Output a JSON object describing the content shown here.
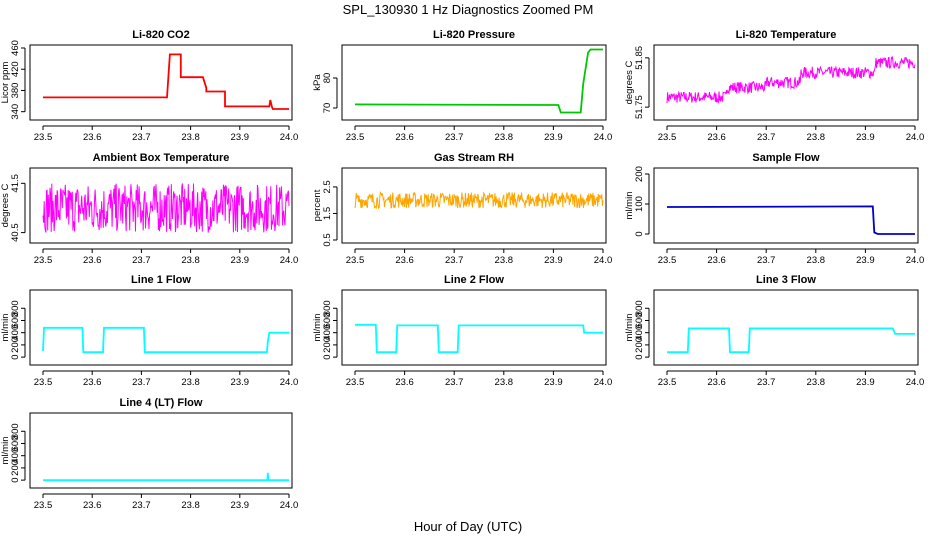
{
  "title": "SPL_130930  1 Hz Diagnostics Zoomed PM",
  "xlabel": "Hour of Day (UTC)",
  "chart_data": [
    {
      "type": "line",
      "title": "Li-820 CO2",
      "ylabel": "Licor ppm",
      "color": "#ff0000",
      "ylim": [
        330,
        460
      ],
      "yticks": [
        340,
        380,
        420,
        460
      ],
      "xlim": [
        23.5,
        24.0
      ],
      "xticks": [
        "23.5",
        "23.6",
        "23.7",
        "23.8",
        "23.9",
        "24.0"
      ],
      "x": [
        23.5,
        23.752,
        23.752,
        23.758,
        23.775,
        23.78,
        23.78,
        23.825,
        23.832,
        23.832,
        23.86,
        23.87,
        23.87,
        23.96,
        23.962,
        23.965,
        23.967,
        24.0
      ],
      "y": [
        367,
        367,
        367,
        448,
        448,
        448,
        405,
        405,
        385,
        378,
        378,
        378,
        350,
        350,
        362,
        350,
        345,
        345
      ]
    },
    {
      "type": "line",
      "title": "Li-820 Pressure",
      "ylabel": "kPa",
      "color": "#00c800",
      "ylim": [
        67,
        90
      ],
      "yticks": [
        70,
        80
      ],
      "xlim": [
        23.5,
        24.0
      ],
      "xticks": [
        "23.5",
        "23.6",
        "23.7",
        "23.8",
        "23.9",
        "24.0"
      ],
      "x": [
        23.5,
        23.91,
        23.915,
        23.955,
        23.96,
        23.97,
        23.975,
        24.0
      ],
      "y": [
        71.2,
        71.0,
        68.5,
        68.5,
        78,
        88.5,
        89.5,
        89.5
      ]
    },
    {
      "type": "line",
      "title": "Li-820 Temperature",
      "ylabel": "degrees C",
      "color": "#ff00ff",
      "ylim": [
        51.73,
        51.87
      ],
      "yticks": [
        51.75,
        51.85
      ],
      "xlim": [
        23.5,
        24.0
      ],
      "xticks": [
        "23.5",
        "23.6",
        "23.7",
        "23.8",
        "23.9",
        "24.0"
      ],
      "x": [
        23.5,
        23.62,
        23.62,
        23.7,
        23.7,
        23.77,
        23.77,
        23.92,
        23.92,
        24.0
      ],
      "y": [
        51.77,
        51.77,
        51.79,
        51.79,
        51.8,
        51.8,
        51.82,
        51.82,
        51.84,
        51.84
      ],
      "noise": 0.012
    },
    {
      "type": "line",
      "title": "Ambient Box Temperature",
      "ylabel": "degrees C",
      "color": "#ff00ff",
      "ylim": [
        40.35,
        41.75
      ],
      "yticks": [
        40.5,
        41.5
      ],
      "xlim": [
        23.5,
        24.0
      ],
      "xticks": [
        "23.5",
        "23.6",
        "23.7",
        "23.8",
        "23.9",
        "24.0"
      ],
      "x": [
        23.5,
        24.0
      ],
      "y": [
        41.0,
        41.0
      ],
      "noise": 0.5
    },
    {
      "type": "line",
      "title": "Gas Stream RH",
      "ylabel": "percent",
      "color": "#ffa500",
      "ylim": [
        0.5,
        3.1
      ],
      "yticks": [
        0.5,
        1.5,
        2.5
      ],
      "xlim": [
        23.5,
        24.0
      ],
      "xticks": [
        "23.5",
        "23.6",
        "23.7",
        "23.8",
        "23.9",
        "24.0"
      ],
      "x": [
        23.5,
        24.0
      ],
      "y": [
        2.0,
        2.0
      ],
      "noise": 0.3
    },
    {
      "type": "line",
      "title": "Sample Flow",
      "ylabel": "ml/min",
      "color": "#0000c8",
      "ylim": [
        -20,
        210
      ],
      "yticks": [
        0,
        100,
        200
      ],
      "xlim": [
        23.5,
        24.0
      ],
      "xticks": [
        "23.5",
        "23.6",
        "23.7",
        "23.8",
        "23.9",
        "24.0"
      ],
      "x": [
        23.5,
        23.915,
        23.918,
        23.925,
        24.0
      ],
      "y": [
        90,
        92,
        5,
        0,
        0
      ]
    },
    {
      "type": "line",
      "title": "Line 1 Flow",
      "ylabel": "ml/min",
      "color": "#00ffff",
      "ylim": [
        -80,
        1050
      ],
      "yticks": [
        0,
        200,
        400,
        600,
        800
      ],
      "xlim": [
        23.5,
        24.0
      ],
      "xticks": [
        "23.5",
        "23.6",
        "23.7",
        "23.8",
        "23.9",
        "24.0"
      ],
      "x": [
        23.5,
        23.502,
        23.58,
        23.582,
        23.622,
        23.624,
        23.705,
        23.707,
        23.955,
        23.957,
        23.96,
        24.0
      ],
      "y": [
        100,
        480,
        480,
        80,
        80,
        480,
        480,
        80,
        80,
        250,
        400,
        400
      ]
    },
    {
      "type": "line",
      "title": "Line 2 Flow",
      "ylabel": "ml/min",
      "color": "#00ffff",
      "ylim": [
        -80,
        1050
      ],
      "yticks": [
        0,
        200,
        400,
        600,
        800
      ],
      "xlim": [
        23.5,
        24.0
      ],
      "xticks": [
        "23.5",
        "23.6",
        "23.7",
        "23.8",
        "23.9",
        "24.0"
      ],
      "x": [
        23.5,
        23.542,
        23.544,
        23.583,
        23.585,
        23.667,
        23.669,
        23.707,
        23.709,
        23.96,
        23.962,
        24.0
      ],
      "y": [
        530,
        530,
        80,
        80,
        520,
        520,
        80,
        80,
        520,
        520,
        400,
        400
      ]
    },
    {
      "type": "line",
      "title": "Line 3 Flow",
      "ylabel": "ml/min",
      "color": "#00ffff",
      "ylim": [
        -80,
        1050
      ],
      "yticks": [
        0,
        200,
        400,
        600,
        800
      ],
      "xlim": [
        23.5,
        24.0
      ],
      "xticks": [
        "23.5",
        "23.6",
        "23.7",
        "23.8",
        "23.9",
        "24.0"
      ],
      "x": [
        23.5,
        23.502,
        23.542,
        23.544,
        23.625,
        23.627,
        23.665,
        23.667,
        23.955,
        23.96,
        24.0
      ],
      "y": [
        80,
        80,
        80,
        470,
        470,
        80,
        80,
        470,
        470,
        380,
        380
      ]
    },
    {
      "type": "line",
      "title": "Line 4 (LT) Flow",
      "ylabel": "ml/min",
      "color": "#00ffff",
      "ylim": [
        -80,
        1050
      ],
      "yticks": [
        0,
        200,
        400,
        600,
        800
      ],
      "xlim": [
        23.5,
        24.0
      ],
      "xticks": [
        "23.5",
        "23.6",
        "23.7",
        "23.8",
        "23.9",
        "24.0"
      ],
      "x": [
        23.5,
        23.956,
        23.957,
        23.958,
        24.0
      ],
      "y": [
        0,
        0,
        120,
        0,
        0
      ]
    }
  ]
}
